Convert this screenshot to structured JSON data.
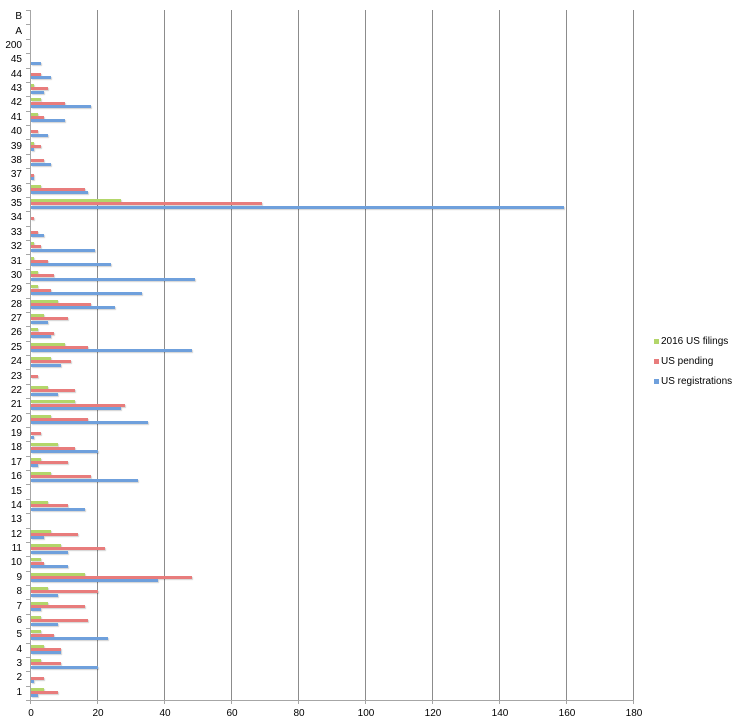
{
  "chart_data": {
    "type": "bar",
    "orientation": "horizontal",
    "title": "",
    "xlabel": "",
    "ylabel": "",
    "xlim": [
      0,
      180
    ],
    "x_ticks": [
      0,
      20,
      40,
      60,
      80,
      100,
      120,
      140,
      160,
      180
    ],
    "grid": "vertical major gridlines",
    "legend_position": "right",
    "categories": [
      "1",
      "2",
      "3",
      "4",
      "5",
      "6",
      "7",
      "8",
      "9",
      "10",
      "11",
      "12",
      "13",
      "14",
      "15",
      "16",
      "17",
      "18",
      "19",
      "20",
      "21",
      "22",
      "23",
      "24",
      "25",
      "26",
      "27",
      "28",
      "29",
      "30",
      "31",
      "32",
      "33",
      "34",
      "35",
      "36",
      "37",
      "38",
      "39",
      "40",
      "41",
      "42",
      "43",
      "44",
      "45",
      "200",
      "A",
      "B"
    ],
    "series": [
      {
        "name": "2016 US filings",
        "color": "#b3d66a",
        "values": [
          4,
          0,
          3,
          4,
          3,
          3,
          5,
          5,
          16,
          3,
          9,
          6,
          0,
          5,
          0,
          6,
          3,
          8,
          0,
          6,
          13,
          5,
          0,
          6,
          10,
          2,
          4,
          8,
          2,
          2,
          1,
          1,
          0,
          0,
          27,
          3,
          0,
          0,
          1,
          0,
          2,
          3,
          1,
          0,
          0,
          0,
          0,
          0
        ]
      },
      {
        "name": "US pending",
        "color": "#e87c7c",
        "values": [
          8,
          4,
          9,
          9,
          7,
          17,
          16,
          20,
          48,
          4,
          22,
          14,
          0,
          11,
          0,
          18,
          11,
          13,
          3,
          17,
          28,
          13,
          2,
          12,
          17,
          7,
          11,
          18,
          6,
          7,
          5,
          3,
          2,
          1,
          69,
          16,
          1,
          4,
          3,
          2,
          4,
          10,
          5,
          3,
          0,
          0,
          0,
          0
        ]
      },
      {
        "name": "US registrations",
        "color": "#6fa0dc",
        "values": [
          2,
          1,
          20,
          9,
          23,
          8,
          3,
          8,
          38,
          11,
          11,
          4,
          0,
          16,
          0,
          32,
          2,
          20,
          1,
          35,
          27,
          8,
          0,
          9,
          48,
          6,
          5,
          25,
          33,
          49,
          24,
          19,
          4,
          0,
          159,
          17,
          1,
          6,
          1,
          5,
          10,
          18,
          4,
          6,
          3,
          0,
          0,
          0
        ]
      }
    ]
  },
  "legend": {
    "items": [
      {
        "label": "2016 US filings",
        "color": "#b3d66a"
      },
      {
        "label": "US pending",
        "color": "#e87c7c"
      },
      {
        "label": "US registrations",
        "color": "#6fa0dc"
      }
    ]
  }
}
